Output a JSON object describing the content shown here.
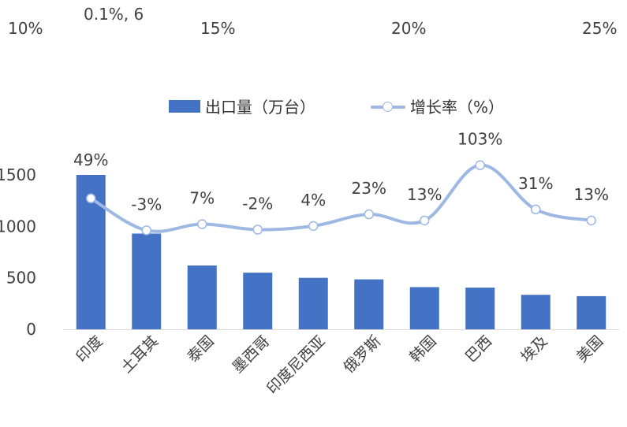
{
  "top_axis": {
    "ticks": [
      "10%",
      "15%",
      "20%",
      "25%"
    ],
    "note": "0.1%, 6"
  },
  "legend": {
    "bar_label": "出口量（万台）",
    "line_label": "增长率（%）"
  },
  "colors": {
    "bar": "#4472C4",
    "line": "#9DB8E2"
  },
  "chart_data": {
    "type": "bar",
    "categories": [
      "印度",
      "土耳其",
      "泰国",
      "墨西哥",
      "印度尼西亚",
      "俄罗斯",
      "韩国",
      "巴西",
      "埃及",
      "美国"
    ],
    "series": [
      {
        "name": "出口量（万台）",
        "type": "bar",
        "values": [
          1500,
          930,
          620,
          550,
          500,
          485,
          410,
          405,
          335,
          322
        ]
      },
      {
        "name": "增长率（%）",
        "type": "line",
        "values": [
          49,
          -3,
          7,
          -2,
          4,
          23,
          13,
          103,
          31,
          13
        ],
        "labels": [
          "49%",
          "-3%",
          "7%",
          "-2%",
          "4%",
          "23%",
          "13%",
          "103%",
          "31%",
          "13%"
        ]
      }
    ],
    "y_ticks": [
      "0",
      "500",
      "1000",
      "1500"
    ],
    "ylim": [
      0,
      1700
    ],
    "legend_position": "top"
  }
}
